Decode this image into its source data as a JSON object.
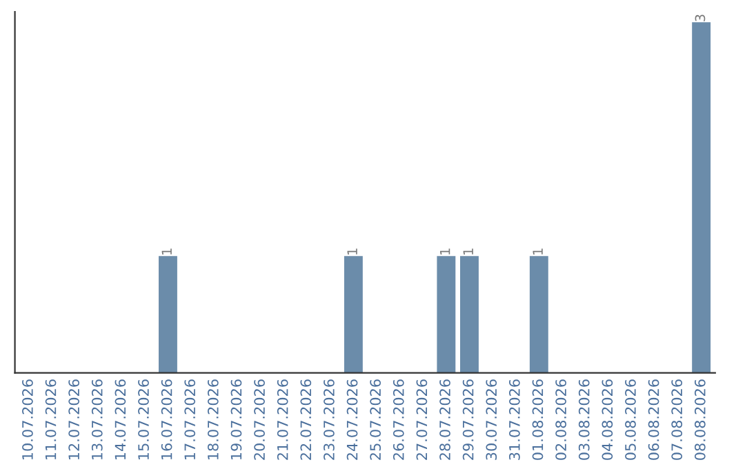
{
  "chart_data": {
    "type": "bar",
    "categories": [
      "10.07.2026",
      "11.07.2026",
      "12.07.2026",
      "13.07.2026",
      "14.07.2026",
      "15.07.2026",
      "16.07.2026",
      "17.07.2026",
      "18.07.2026",
      "19.07.2026",
      "20.07.2026",
      "21.07.2026",
      "22.07.2026",
      "23.07.2026",
      "24.07.2026",
      "25.07.2026",
      "26.07.2026",
      "27.07.2026",
      "28.07.2026",
      "29.07.2026",
      "30.07.2026",
      "31.07.2026",
      "01.08.2026",
      "02.08.2026",
      "03.08.2026",
      "04.08.2026",
      "05.08.2026",
      "06.08.2026",
      "07.08.2026",
      "08.08.2026"
    ],
    "values": [
      0,
      0,
      0,
      0,
      0,
      0,
      1,
      0,
      0,
      0,
      0,
      0,
      0,
      0,
      1,
      0,
      0,
      0,
      1,
      1,
      0,
      0,
      1,
      0,
      0,
      0,
      0,
      0,
      0,
      3
    ],
    "value_labels": [
      null,
      null,
      null,
      null,
      null,
      null,
      "1",
      null,
      null,
      null,
      null,
      null,
      null,
      null,
      "1",
      null,
      null,
      null,
      "1",
      "1",
      null,
      null,
      "1",
      null,
      null,
      null,
      null,
      null,
      null,
      "3"
    ],
    "color": "#6b8caa",
    "grid": false,
    "legend": false,
    "tick_labels": "x"
  }
}
